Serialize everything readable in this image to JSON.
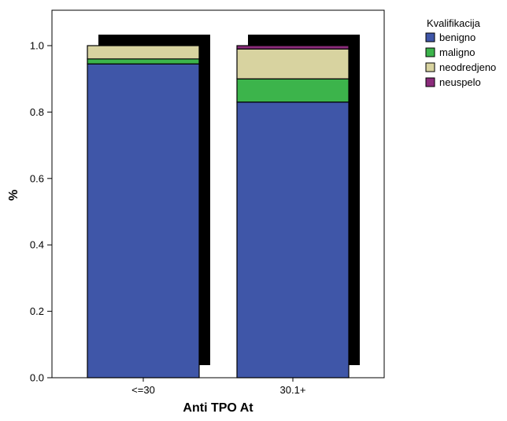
{
  "chart_data": {
    "type": "bar",
    "stacked": true,
    "categories": [
      "<=30",
      "30.1+"
    ],
    "series": [
      {
        "name": "benigno",
        "values": [
          0.945,
          0.83
        ],
        "color": "#3f56a8"
      },
      {
        "name": "maligno",
        "values": [
          0.015,
          0.07
        ],
        "color": "#3cb44b"
      },
      {
        "name": "neodredjeno",
        "values": [
          0.04,
          0.09
        ],
        "color": "#d8d3a0"
      },
      {
        "name": "neuspelo",
        "values": [
          0.0,
          0.01
        ],
        "color": "#8b2c7b"
      }
    ],
    "xlabel": "Anti TPO At",
    "ylabel": "%",
    "ylim": [
      0,
      1.0
    ],
    "yticks": [
      "0.0",
      "0.2",
      "0.4",
      "0.6",
      "0.8",
      "1.0"
    ],
    "legend_title": "Kvalifikacija",
    "legend_position": "top-right",
    "shadow_color": "#000000",
    "grid": false
  }
}
